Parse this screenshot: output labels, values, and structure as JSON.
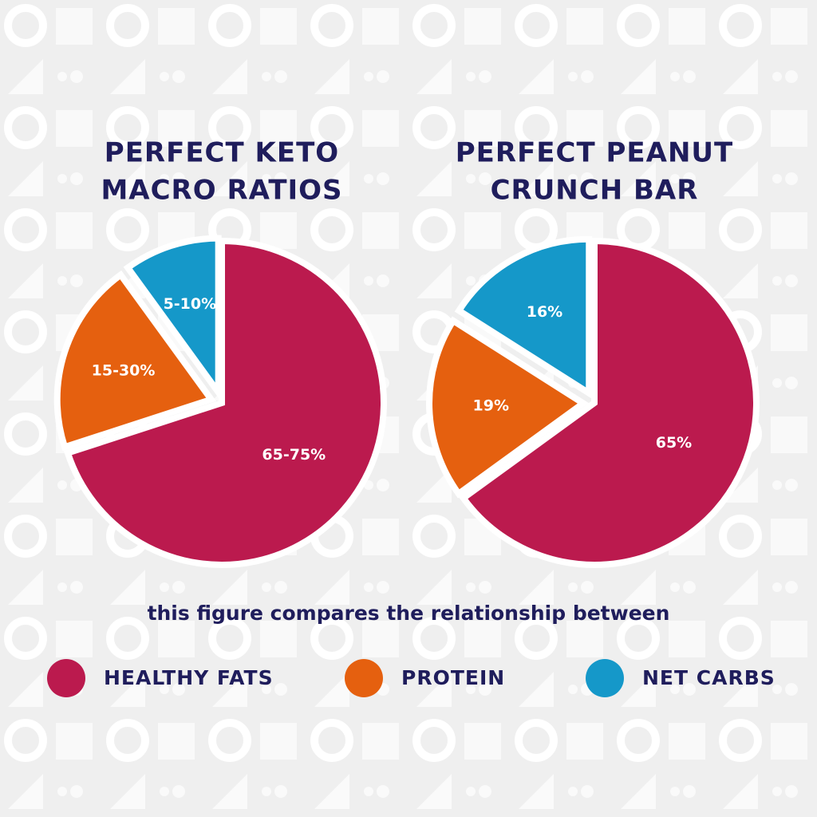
{
  "chart_data": [
    {
      "type": "pie",
      "title": [
        "PERFECT KETO",
        "MACRO RATIOS"
      ],
      "values": [
        70,
        20,
        10
      ],
      "value_labels": [
        "65-75%",
        "15-30%",
        "5-10%"
      ],
      "colors": [
        "#bb1a4e",
        "#e5600f",
        "#1598c9"
      ]
    },
    {
      "type": "pie",
      "title": [
        "PERFECT PEANUT",
        "CRUNCH BAR"
      ],
      "values": [
        65,
        19,
        16
      ],
      "value_labels": [
        "65%",
        "19%",
        "16%"
      ],
      "colors": [
        "#bb1a4e",
        "#e5600f",
        "#1598c9"
      ]
    }
  ],
  "caption": "this figure compares the relationship between",
  "legend": [
    {
      "label": "HEALTHY FATS",
      "color": "#bb1a4e"
    },
    {
      "label": "PROTEIN",
      "color": "#e5600f"
    },
    {
      "label": "NET CARBS",
      "color": "#1598c9"
    }
  ]
}
